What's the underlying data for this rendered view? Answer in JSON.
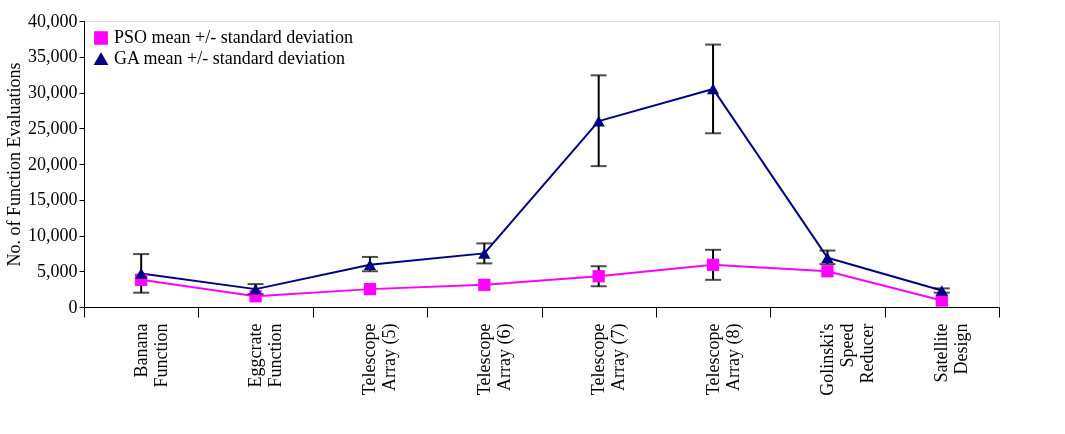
{
  "chart_data": {
    "type": "line",
    "categories": [
      "Banana\nFunction",
      "Eggcrate\nFunction",
      "Telescope\nArray (5)",
      "Telescope\nArray (6)",
      "Telescope\nArray (7)",
      "Telescope\nArray (8)",
      "Golinski's\nSpeed\nReducer",
      "Satellite\nDesign"
    ],
    "series": [
      {
        "name": "PSO mean +/- standard deviation",
        "color": "#ff00ff",
        "marker": "square",
        "values": [
          3800,
          1500,
          2500,
          3100,
          4300,
          5900,
          5000,
          900
        ],
        "errors": [
          null,
          null,
          null,
          null,
          [
            2900,
            5700
          ],
          [
            3800,
            8000
          ],
          null,
          null
        ]
      },
      {
        "name": "GA mean +/- standard deviation",
        "color": "#000080",
        "marker": "triangle",
        "values": [
          4700,
          2500,
          5900,
          7500,
          26000,
          30500,
          6900,
          2300
        ],
        "errors": [
          [
            2000,
            7400
          ],
          [
            1800,
            3200
          ],
          [
            5000,
            7000
          ],
          [
            6100,
            8900
          ],
          [
            19700,
            32400
          ],
          [
            24300,
            36700
          ],
          [
            6000,
            7900
          ],
          [
            2000,
            2600
          ]
        ]
      }
    ],
    "ylabel": "No. of Function Evaluations",
    "ylim": [
      0,
      40000
    ],
    "yticks": [
      0,
      {
        "value": 5000,
        "label": "5,000"
      },
      {
        "value": 10000,
        "label": "10,000"
      },
      {
        "value": 15000,
        "label": "15,000"
      },
      {
        "value": 20000,
        "label": "20,000"
      },
      {
        "value": 25000,
        "label": "25,000"
      },
      {
        "value": 30000,
        "label": "30,000"
      },
      {
        "value": 35000,
        "label": "35,000"
      },
      {
        "value": 40000,
        "label": "40,000"
      }
    ],
    "grid": false,
    "legend": "top left"
  }
}
